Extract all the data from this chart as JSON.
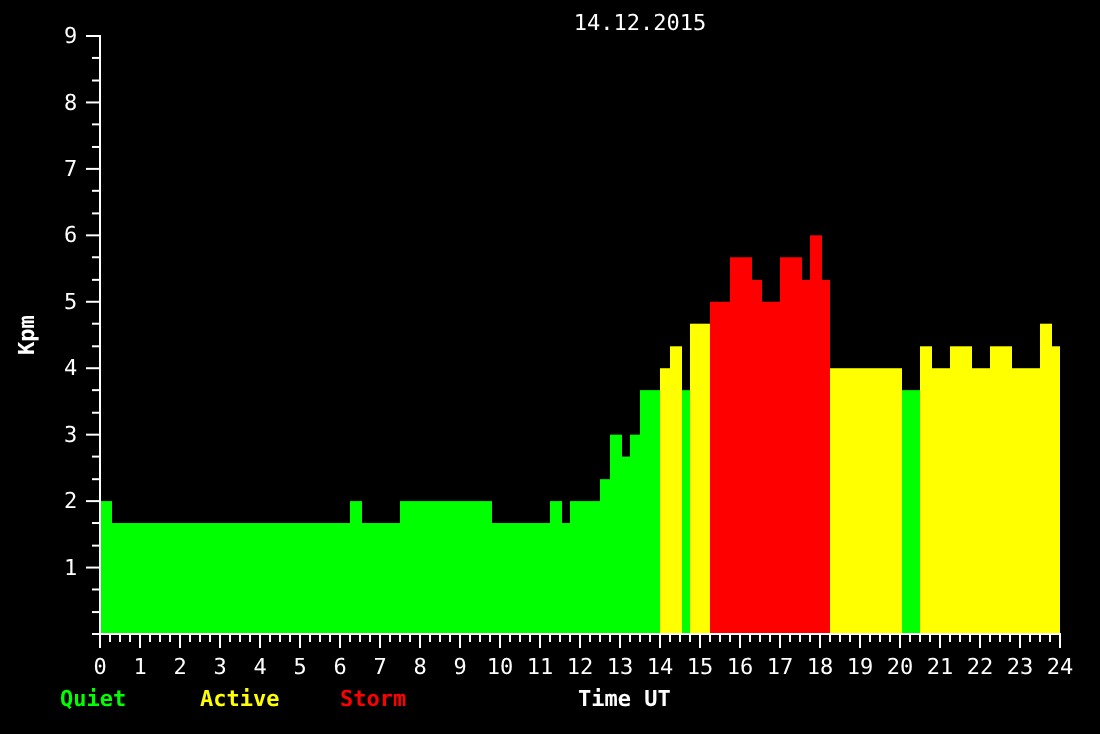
{
  "chart_data": {
    "type": "histogram",
    "title": "14.12.2015",
    "xlabel": "Time UT",
    "ylabel": "Kpm",
    "bins": [
      0,
      0.3,
      6.25,
      6.55,
      7.5,
      9.8,
      11.25,
      11.55,
      11.75,
      12.5,
      12.75,
      13.05,
      13.25,
      13.5,
      14,
      14.25,
      14.55,
      14.75,
      15.25,
      15.75,
      16.3,
      16.55,
      17,
      17.55,
      17.75,
      18.05,
      18.25,
      20.05,
      20.5,
      20.8,
      21.25,
      21.8,
      22.25,
      22.8,
      23.5,
      23.8,
      24
    ],
    "series": [
      {
        "name": "Quiet",
        "color": "#00ff00",
        "values": [
          2,
          1.67,
          2,
          1.67,
          2,
          1.67,
          2,
          1.67,
          2,
          2.33,
          3,
          2.67,
          3,
          3.67,
          null,
          null,
          3.67,
          null,
          null,
          null,
          null,
          null,
          null,
          null,
          null,
          null,
          null,
          3.67,
          null,
          null,
          null,
          null,
          null,
          null,
          null,
          null
        ]
      },
      {
        "name": "Active",
        "color": "#ffff00",
        "values": [
          null,
          null,
          null,
          null,
          null,
          null,
          null,
          null,
          null,
          null,
          null,
          null,
          null,
          null,
          4,
          4.33,
          null,
          4.67,
          null,
          null,
          null,
          null,
          null,
          null,
          null,
          null,
          4,
          null,
          4.33,
          4,
          4.33,
          4,
          4.33,
          4,
          4.67,
          4.33
        ]
      },
      {
        "name": "Storm",
        "color": "#ff0000",
        "values": [
          null,
          null,
          null,
          null,
          null,
          null,
          null,
          null,
          null,
          null,
          null,
          null,
          null,
          null,
          null,
          null,
          null,
          null,
          5,
          5.67,
          5.33,
          5,
          5.67,
          5.33,
          6,
          5.33,
          null,
          null,
          null,
          null,
          null,
          null,
          null,
          null,
          null,
          null
        ]
      }
    ],
    "xlim": [
      0,
      24
    ],
    "ylim": [
      0,
      9
    ],
    "xticks": [
      0,
      {
        "value": 0.25,
        "label": null
      },
      {
        "value": 0.5,
        "label": null
      },
      {
        "value": 0.75,
        "label": null
      },
      1,
      {
        "value": 1.25,
        "label": null
      },
      {
        "value": 1.5,
        "label": null
      },
      {
        "value": 1.75,
        "label": null
      },
      2,
      {
        "value": 2.25,
        "label": null
      },
      {
        "value": 2.5,
        "label": null
      },
      {
        "value": 2.75,
        "label": null
      },
      3,
      {
        "value": 3.25,
        "label": null
      },
      {
        "value": 3.5,
        "label": null
      },
      {
        "value": 3.75,
        "label": null
      },
      4,
      {
        "value": 4.25,
        "label": null
      },
      {
        "value": 4.5,
        "label": null
      },
      {
        "value": 4.75,
        "label": null
      },
      5,
      {
        "value": 5.25,
        "label": null
      },
      {
        "value": 5.5,
        "label": null
      },
      {
        "value": 5.75,
        "label": null
      },
      6,
      {
        "value": 6.25,
        "label": null
      },
      {
        "value": 6.5,
        "label": null
      },
      {
        "value": 6.75,
        "label": null
      },
      7,
      {
        "value": 7.25,
        "label": null
      },
      {
        "value": 7.5,
        "label": null
      },
      {
        "value": 7.75,
        "label": null
      },
      8,
      {
        "value": 8.25,
        "label": null
      },
      {
        "value": 8.5,
        "label": null
      },
      {
        "value": 8.75,
        "label": null
      },
      9,
      {
        "value": 9.25,
        "label": null
      },
      {
        "value": 9.5,
        "label": null
      },
      {
        "value": 9.75,
        "label": null
      },
      10,
      {
        "value": 10.25,
        "label": null
      },
      {
        "value": 10.5,
        "label": null
      },
      {
        "value": 10.75,
        "label": null
      },
      11,
      {
        "value": 11.25,
        "label": null
      },
      {
        "value": 11.5,
        "label": null
      },
      {
        "value": 11.75,
        "label": null
      },
      12,
      {
        "value": 12.25,
        "label": null
      },
      {
        "value": 12.5,
        "label": null
      },
      {
        "value": 12.75,
        "label": null
      },
      13,
      {
        "value": 13.25,
        "label": null
      },
      {
        "value": 13.5,
        "label": null
      },
      {
        "value": 13.75,
        "label": null
      },
      14,
      {
        "value": 14.25,
        "label": null
      },
      {
        "value": 14.5,
        "label": null
      },
      {
        "value": 14.75,
        "label": null
      },
      15,
      {
        "value": 15.25,
        "label": null
      },
      {
        "value": 15.5,
        "label": null
      },
      {
        "value": 15.75,
        "label": null
      },
      16,
      {
        "value": 16.25,
        "label": null
      },
      {
        "value": 16.5,
        "label": null
      },
      {
        "value": 16.75,
        "label": null
      },
      17,
      {
        "value": 17.25,
        "label": null
      },
      {
        "value": 17.5,
        "label": null
      },
      {
        "value": 17.75,
        "label": null
      },
      18,
      {
        "value": 18.25,
        "label": null
      },
      {
        "value": 18.5,
        "label": null
      },
      {
        "value": 18.75,
        "label": null
      },
      19,
      {
        "value": 19.25,
        "label": null
      },
      {
        "value": 19.5,
        "label": null
      },
      {
        "value": 19.75,
        "label": null
      },
      20,
      {
        "value": 20.25,
        "label": null
      },
      {
        "value": 20.5,
        "label": null
      },
      {
        "value": 20.75,
        "label": null
      },
      21,
      {
        "value": 21.25,
        "label": null
      },
      {
        "value": 21.5,
        "label": null
      },
      {
        "value": 21.75,
        "label": null
      },
      22,
      {
        "value": 22.25,
        "label": null
      },
      {
        "value": 22.5,
        "label": null
      },
      {
        "value": 22.75,
        "label": null
      },
      23,
      {
        "value": 23.25,
        "label": null
      },
      {
        "value": 23.5,
        "label": null
      },
      {
        "value": 23.75,
        "label": null
      },
      24
    ],
    "yticks": [
      {
        "value": 0.33,
        "label": null
      },
      {
        "value": 0.67,
        "label": null
      },
      1,
      {
        "value": 1.33,
        "label": null
      },
      {
        "value": 1.67,
        "label": null
      },
      2,
      {
        "value": 2.33,
        "label": null
      },
      {
        "value": 2.67,
        "label": null
      },
      3,
      {
        "value": 3.33,
        "label": null
      },
      {
        "value": 3.67,
        "label": null
      },
      4,
      {
        "value": 4.33,
        "label": null
      },
      {
        "value": 4.67,
        "label": null
      },
      5,
      {
        "value": 5.33,
        "label": null
      },
      {
        "value": 5.67,
        "label": null
      },
      6,
      {
        "value": 6.33,
        "label": null
      },
      {
        "value": 6.67,
        "label": null
      },
      7,
      {
        "value": 7.33,
        "label": null
      },
      {
        "value": 7.67,
        "label": null
      },
      8,
      {
        "value": 8.33,
        "label": null
      },
      {
        "value": 8.67,
        "label": null
      },
      9
    ],
    "legend": "bottom left",
    "grid": false
  }
}
